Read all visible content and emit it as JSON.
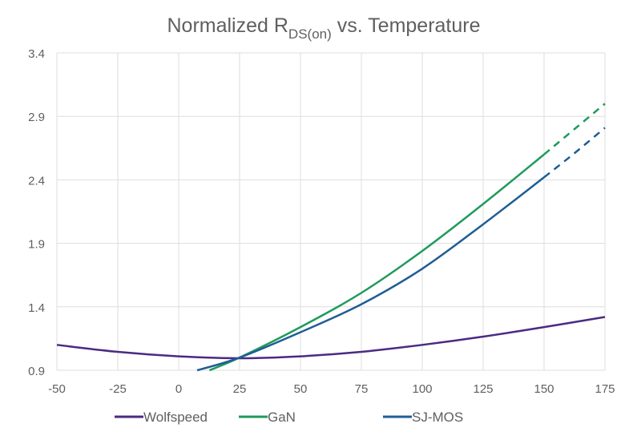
{
  "chart_data": {
    "type": "line",
    "title": {
      "main": "Normalized R",
      "subscript": "DS(on)",
      "rest": " vs. Temperature"
    },
    "xlabel": "",
    "ylabel": "",
    "xlim": [
      -50,
      175
    ],
    "ylim": [
      0.9,
      3.4
    ],
    "x_ticks": [
      -50,
      -25,
      0,
      25,
      50,
      75,
      100,
      125,
      150,
      175
    ],
    "y_ticks": [
      0.9,
      1.4,
      1.9,
      2.4,
      2.9,
      3.4
    ],
    "y_tick_labels": [
      "0.9",
      "1.4",
      "1.9",
      "2.4",
      "2.9",
      "3.4"
    ],
    "grid": true,
    "legend_position": "bottom",
    "series": [
      {
        "name": "Wolfspeed",
        "color": "#4b2a82",
        "points": [
          [
            -50,
            1.1
          ],
          [
            -25,
            1.045
          ],
          [
            0,
            1.01
          ],
          [
            25,
            0.995
          ],
          [
            50,
            1.01
          ],
          [
            75,
            1.045
          ],
          [
            100,
            1.1
          ],
          [
            125,
            1.165
          ],
          [
            150,
            1.24
          ],
          [
            175,
            1.32
          ]
        ],
        "dashed_points": []
      },
      {
        "name": "GaN",
        "color": "#1f9a5c",
        "points": [
          [
            12.6,
            0.9
          ],
          [
            25,
            1.0
          ],
          [
            50,
            1.24
          ],
          [
            75,
            1.51
          ],
          [
            100,
            1.84
          ],
          [
            125,
            2.21
          ],
          [
            150,
            2.6
          ]
        ],
        "dashed_points": [
          [
            150,
            2.6
          ],
          [
            162.5,
            2.8
          ],
          [
            175,
            3.0
          ]
        ]
      },
      {
        "name": "SJ-MOS",
        "color": "#1f5d96",
        "points": [
          [
            7.6,
            0.9
          ],
          [
            25,
            1.0
          ],
          [
            50,
            1.2
          ],
          [
            75,
            1.42
          ],
          [
            100,
            1.7
          ],
          [
            125,
            2.05
          ],
          [
            150,
            2.42
          ]
        ],
        "dashed_points": [
          [
            150,
            2.42
          ],
          [
            162.5,
            2.61
          ],
          [
            175,
            2.81
          ]
        ]
      }
    ]
  }
}
